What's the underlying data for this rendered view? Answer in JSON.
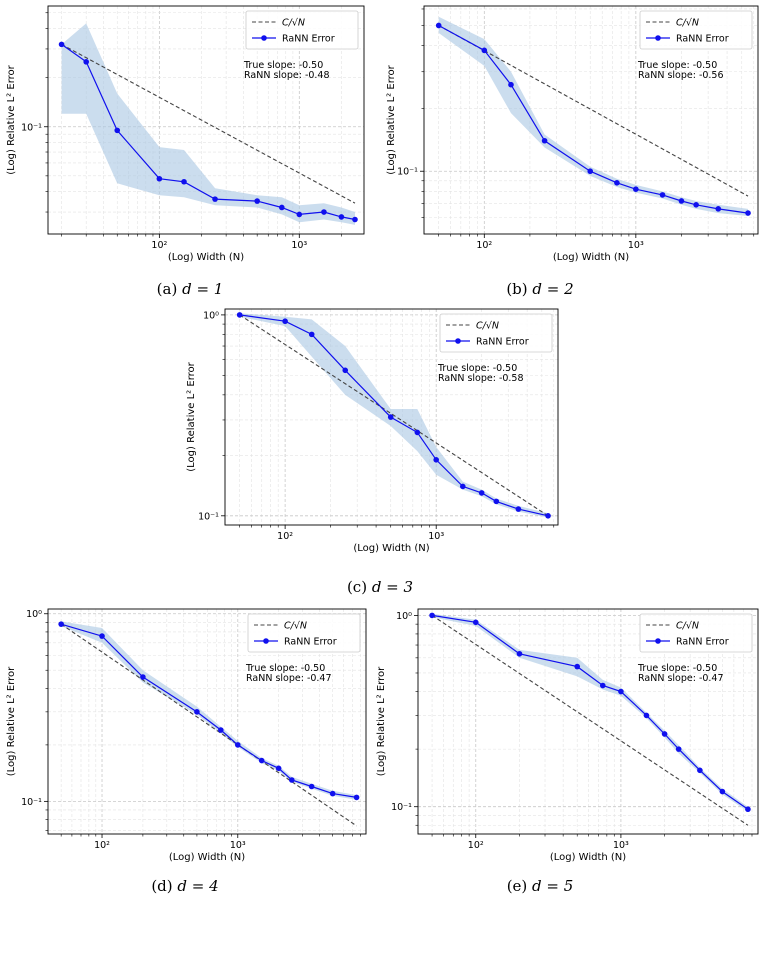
{
  "colors": {
    "ref_line": "#444444",
    "rann": "#1010ee",
    "band": "#a9c6e2",
    "grid_major": "#c8c8c8",
    "grid_minor": "#e3e3e3"
  },
  "chart_data": [
    {
      "id": "a",
      "type": "line",
      "caption_prefix": "(a) ",
      "caption_math": "d = 1",
      "xlabel": "(Log) Width (N)",
      "ylabel": "(Log) Relative L² Error",
      "xscale": "log",
      "yscale": "log",
      "xlim": [
        16,
        2900
      ],
      "ylim": [
        0.022,
        0.55
      ],
      "xticks": [
        {
          "v": 100,
          "label": "10²"
        },
        {
          "v": 1000,
          "label": "10³"
        }
      ],
      "yticks": [
        {
          "v": 0.1,
          "label": "10⁻¹"
        }
      ],
      "grid": true,
      "legend_position": "upper-right",
      "legend": [
        {
          "label": "C/√N",
          "style": "dashed"
        },
        {
          "label": "RaNN Error",
          "style": "line-marker"
        }
      ],
      "annotations": [
        "True slope: -0.50",
        "RaNN slope: -0.48"
      ],
      "series": [
        {
          "name": "C/√N",
          "x": [
            20,
            2500
          ],
          "y": [
            0.32,
            0.034
          ]
        },
        {
          "name": "RaNN Error",
          "x": [
            20,
            30,
            50,
            100,
            150,
            250,
            500,
            750,
            1000,
            1500,
            2000,
            2500
          ],
          "y": [
            0.32,
            0.25,
            0.095,
            0.048,
            0.046,
            0.036,
            0.035,
            0.032,
            0.029,
            0.03,
            0.028,
            0.027
          ],
          "band_low": [
            0.12,
            0.12,
            0.045,
            0.038,
            0.037,
            0.033,
            0.032,
            0.029,
            0.026,
            0.027,
            0.026,
            0.025
          ],
          "band_high": [
            0.32,
            0.43,
            0.16,
            0.075,
            0.072,
            0.042,
            0.038,
            0.037,
            0.033,
            0.034,
            0.032,
            0.03
          ]
        }
      ]
    },
    {
      "id": "b",
      "type": "line",
      "caption_prefix": "(b) ",
      "caption_math": "d = 2",
      "xlabel": "(Log) Width (N)",
      "ylabel": "(Log) Relative L² Error",
      "xscale": "log",
      "yscale": "log",
      "xlim": [
        40,
        6400
      ],
      "ylim": [
        0.05,
        0.62
      ],
      "xticks": [
        {
          "v": 100,
          "label": "10²"
        },
        {
          "v": 1000,
          "label": "10³"
        }
      ],
      "yticks": [
        {
          "v": 0.1,
          "label": "10⁻¹"
        }
      ],
      "grid": true,
      "legend_position": "upper-right",
      "legend": [
        {
          "label": "C/√N",
          "style": "dashed"
        },
        {
          "label": "RaNN Error",
          "style": "line-marker"
        }
      ],
      "annotations": [
        "True slope: -0.50",
        "RaNN slope: -0.56"
      ],
      "series": [
        {
          "name": "C/√N",
          "x": [
            50,
            5500
          ],
          "y": [
            0.5,
            0.076
          ]
        },
        {
          "name": "RaNN Error",
          "x": [
            50,
            100,
            150,
            250,
            500,
            750,
            1000,
            1500,
            2000,
            2500,
            3500,
            5500
          ],
          "y": [
            0.5,
            0.38,
            0.26,
            0.14,
            0.1,
            0.088,
            0.082,
            0.077,
            0.072,
            0.069,
            0.066,
            0.063
          ],
          "band_low": [
            0.46,
            0.32,
            0.19,
            0.13,
            0.095,
            0.084,
            0.079,
            0.074,
            0.069,
            0.066,
            0.063,
            0.061
          ],
          "band_high": [
            0.55,
            0.43,
            0.3,
            0.15,
            0.105,
            0.092,
            0.086,
            0.08,
            0.075,
            0.072,
            0.069,
            0.066
          ]
        }
      ]
    },
    {
      "id": "c",
      "type": "line",
      "caption_prefix": "(c) ",
      "caption_math": "d = 3",
      "xlabel": "(Log) Width (N)",
      "ylabel": "(Log) Relative L² Error",
      "xscale": "log",
      "yscale": "log",
      "xlim": [
        40,
        6400
      ],
      "ylim": [
        0.09,
        1.07
      ],
      "xticks": [
        {
          "v": 100,
          "label": "10²"
        },
        {
          "v": 1000,
          "label": "10³"
        }
      ],
      "yticks": [
        {
          "v": 1,
          "label": "10⁰"
        },
        {
          "v": 0.1,
          "label": "10⁻¹"
        }
      ],
      "grid": true,
      "legend_position": "upper-right",
      "legend": [
        {
          "label": "C/√N",
          "style": "dashed"
        },
        {
          "label": "RaNN Error",
          "style": "line-marker"
        }
      ],
      "annotations": [
        "True slope: -0.50",
        "RaNN slope: -0.58"
      ],
      "series": [
        {
          "name": "C/√N",
          "x": [
            50,
            5500
          ],
          "y": [
            1.0,
            0.1
          ]
        },
        {
          "name": "RaNN Error",
          "x": [
            50,
            100,
            150,
            250,
            500,
            750,
            1000,
            1500,
            2000,
            2500,
            3500,
            5500
          ],
          "y": [
            1.0,
            0.93,
            0.8,
            0.53,
            0.31,
            0.26,
            0.19,
            0.14,
            0.13,
            0.118,
            0.108,
            0.1
          ],
          "band_low": [
            0.98,
            0.88,
            0.62,
            0.4,
            0.28,
            0.21,
            0.16,
            0.135,
            0.125,
            0.114,
            0.105,
            0.098
          ],
          "band_high": [
            1.02,
            0.98,
            0.95,
            0.7,
            0.34,
            0.34,
            0.22,
            0.148,
            0.135,
            0.122,
            0.112,
            0.103
          ]
        }
      ]
    },
    {
      "id": "d",
      "type": "line",
      "caption_prefix": "(d) ",
      "caption_math": "d = 4",
      "xlabel": "(Log) Width (N)",
      "ylabel": "(Log) Relative L² Error",
      "xscale": "log",
      "yscale": "log",
      "xlim": [
        40,
        8800
      ],
      "ylim": [
        0.067,
        1.06
      ],
      "xticks": [
        {
          "v": 100,
          "label": "10²"
        },
        {
          "v": 1000,
          "label": "10³"
        }
      ],
      "yticks": [
        {
          "v": 1,
          "label": "10⁰"
        },
        {
          "v": 0.1,
          "label": "10⁻¹"
        }
      ],
      "grid": true,
      "legend_position": "upper-right",
      "legend": [
        {
          "label": "C/√N",
          "style": "dashed"
        },
        {
          "label": "RaNN Error",
          "style": "line-marker"
        }
      ],
      "annotations": [
        "True slope: -0.50",
        "RaNN slope: -0.47"
      ],
      "series": [
        {
          "name": "C/√N",
          "x": [
            50,
            7500
          ],
          "y": [
            0.88,
            0.074
          ]
        },
        {
          "name": "RaNN Error",
          "x": [
            50,
            100,
            200,
            500,
            750,
            1000,
            1500,
            2000,
            2500,
            3500,
            5000,
            7500
          ],
          "y": [
            0.88,
            0.76,
            0.46,
            0.3,
            0.24,
            0.2,
            0.165,
            0.15,
            0.13,
            0.12,
            0.11,
            0.105
          ],
          "band_low": [
            0.86,
            0.7,
            0.43,
            0.29,
            0.23,
            0.195,
            0.16,
            0.145,
            0.127,
            0.117,
            0.107,
            0.102
          ],
          "band_high": [
            0.91,
            0.84,
            0.5,
            0.32,
            0.25,
            0.21,
            0.17,
            0.155,
            0.135,
            0.124,
            0.114,
            0.108
          ]
        }
      ]
    },
    {
      "id": "e",
      "type": "line",
      "caption_prefix": "(e) ",
      "caption_math": "d = 5",
      "xlabel": "(Log) Width (N)",
      "ylabel": "(Log) Relative L² Error",
      "xscale": "log",
      "yscale": "log",
      "xlim": [
        40,
        8800
      ],
      "ylim": [
        0.072,
        1.08
      ],
      "xticks": [
        {
          "v": 100,
          "label": "10²"
        },
        {
          "v": 1000,
          "label": "10³"
        }
      ],
      "yticks": [
        {
          "v": 1,
          "label": "10⁰"
        },
        {
          "v": 0.1,
          "label": "10⁻¹"
        }
      ],
      "grid": true,
      "legend_position": "upper-right",
      "legend": [
        {
          "label": "C/√N",
          "style": "dashed"
        },
        {
          "label": "RaNN Error",
          "style": "line-marker"
        }
      ],
      "annotations": [
        "True slope: -0.50",
        "RaNN slope: -0.47"
      ],
      "series": [
        {
          "name": "C/√N",
          "x": [
            50,
            7500
          ],
          "y": [
            1.0,
            0.08
          ]
        },
        {
          "name": "RaNN Error",
          "x": [
            50,
            100,
            200,
            500,
            750,
            1000,
            1500,
            2000,
            2500,
            3500,
            5000,
            7500
          ],
          "y": [
            1.0,
            0.92,
            0.63,
            0.54,
            0.43,
            0.4,
            0.3,
            0.24,
            0.2,
            0.155,
            0.12,
            0.097
          ],
          "band_low": [
            0.98,
            0.88,
            0.6,
            0.48,
            0.41,
            0.38,
            0.29,
            0.23,
            0.19,
            0.15,
            0.116,
            0.094
          ],
          "band_high": [
            1.02,
            0.95,
            0.66,
            0.6,
            0.46,
            0.42,
            0.31,
            0.25,
            0.21,
            0.16,
            0.124,
            0.1
          ]
        }
      ]
    }
  ]
}
